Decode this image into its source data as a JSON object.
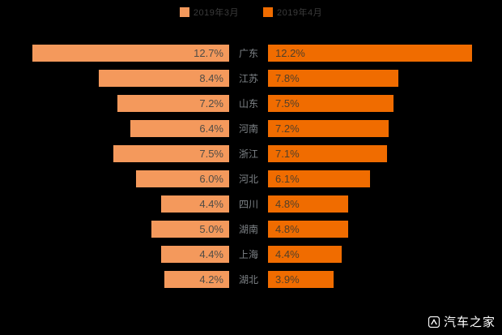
{
  "legend": {
    "series1_label": "2019年3月",
    "series2_label": "2019年4月"
  },
  "chart_data": {
    "type": "bar",
    "variant": "tornado-comparison",
    "legend_position": "top",
    "value_format": "percent",
    "categories": [
      "广东",
      "江苏",
      "山东",
      "河南",
      "浙江",
      "河北",
      "四川",
      "湖南",
      "上海",
      "湖北"
    ],
    "series": [
      {
        "name": "2019年3月",
        "side": "left",
        "color": "#F4995C",
        "values": [
          12.7,
          8.4,
          7.2,
          6.4,
          7.5,
          6.0,
          4.4,
          5.0,
          4.4,
          4.2
        ]
      },
      {
        "name": "2019年4月",
        "side": "right",
        "color": "#F06C00",
        "values": [
          12.2,
          7.8,
          7.5,
          7.2,
          7.1,
          6.1,
          4.8,
          4.8,
          4.4,
          3.9
        ]
      }
    ],
    "value_labels_left": [
      "12.7%",
      "8.4%",
      "7.2%",
      "6.4%",
      "7.5%",
      "6.0%",
      "4.4%",
      "5.0%",
      "4.4%",
      "4.2%"
    ],
    "value_labels_right": [
      "12.2%",
      "7.8%",
      "7.5%",
      "7.2%",
      "7.1%",
      "6.1%",
      "4.8%",
      "4.8%",
      "4.4%",
      "3.9%"
    ]
  },
  "colors": {
    "background": "#000000",
    "bar_light": "#F4995C",
    "bar_dark": "#F06C00",
    "bar_label_left": "#4F4C46",
    "bar_label_right": "#503F2A",
    "category_label": "#7E8387",
    "legend_text": "#3B3B3B",
    "watermark_text": "#FFFFFF"
  },
  "watermark": {
    "text": "汽车之家"
  }
}
